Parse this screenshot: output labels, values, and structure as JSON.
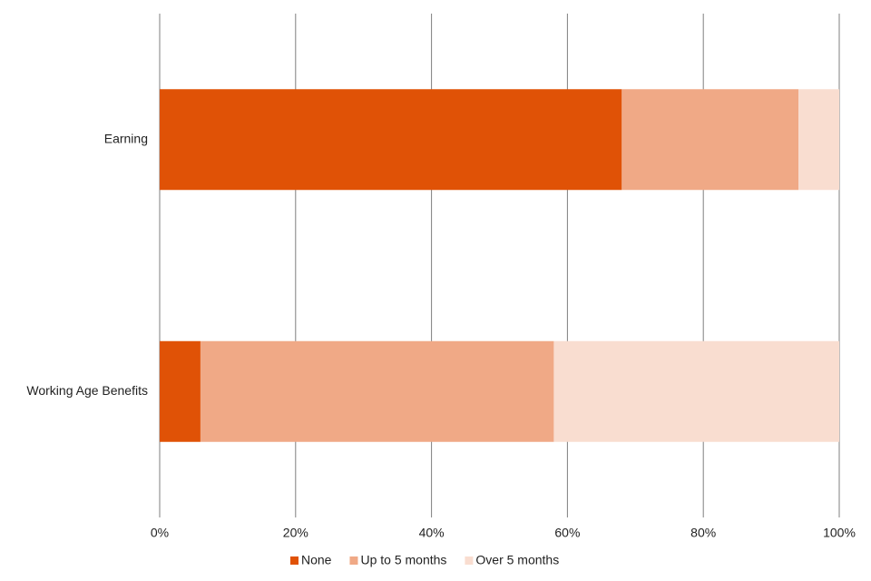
{
  "chart_data": {
    "type": "stacked-bar-horizontal",
    "categories": [
      "Earning",
      "Working Age Benefits"
    ],
    "series": [
      {
        "name": "None",
        "color": "#e05206",
        "values": [
          68,
          6
        ]
      },
      {
        "name": "Up to 5 months",
        "color": "#f0a986",
        "values": [
          26,
          52
        ]
      },
      {
        "name": "Over 5 months",
        "color": "#f9ddd0",
        "values": [
          6,
          42
        ]
      }
    ],
    "xlim": [
      0,
      100
    ],
    "xticks": [
      {
        "value": 0,
        "label": "0%"
      },
      {
        "value": 20,
        "label": "20%"
      },
      {
        "value": 40,
        "label": "40%"
      },
      {
        "value": 60,
        "label": "60%"
      },
      {
        "value": 80,
        "label": "80%"
      },
      {
        "value": 100,
        "label": "100%"
      }
    ],
    "grid": true,
    "legend": "bottom"
  }
}
